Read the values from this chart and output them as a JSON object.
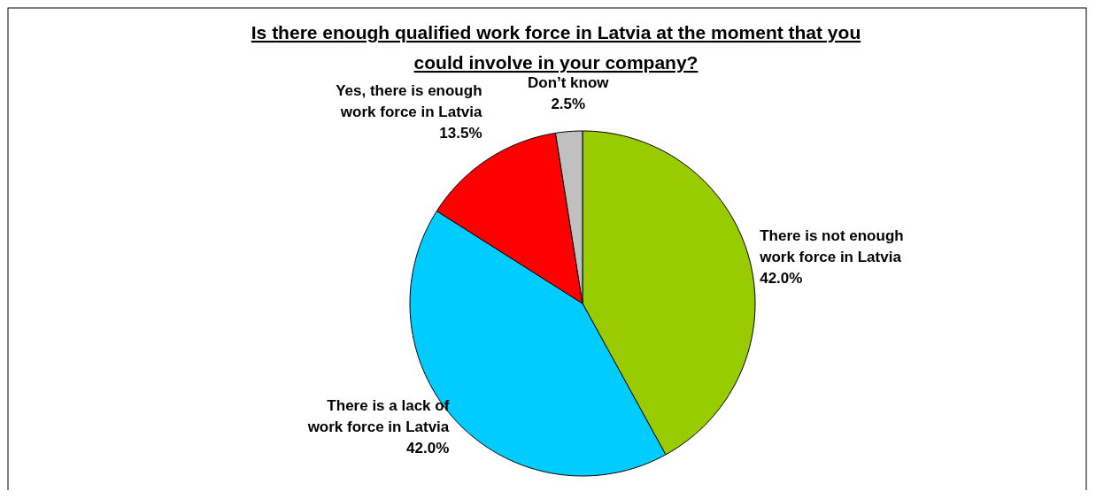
{
  "chart_data": {
    "type": "pie",
    "title": "Is there enough qualified work force in Latvia at the moment that you could involve in your company?",
    "categories": [
      "There is not enough work force in Latvia",
      "There is a lack of work force in Latvia",
      "Yes, there is enough work force in Latvia",
      "Don’t know"
    ],
    "values": [
      42.0,
      42.0,
      13.5,
      2.5
    ],
    "colors": [
      "#99cc00",
      "#00ccff",
      "#ff0000",
      "#c0c0c0"
    ],
    "value_labels": [
      "42.0%",
      "42.0%",
      "13.5%",
      "2.5%"
    ]
  }
}
